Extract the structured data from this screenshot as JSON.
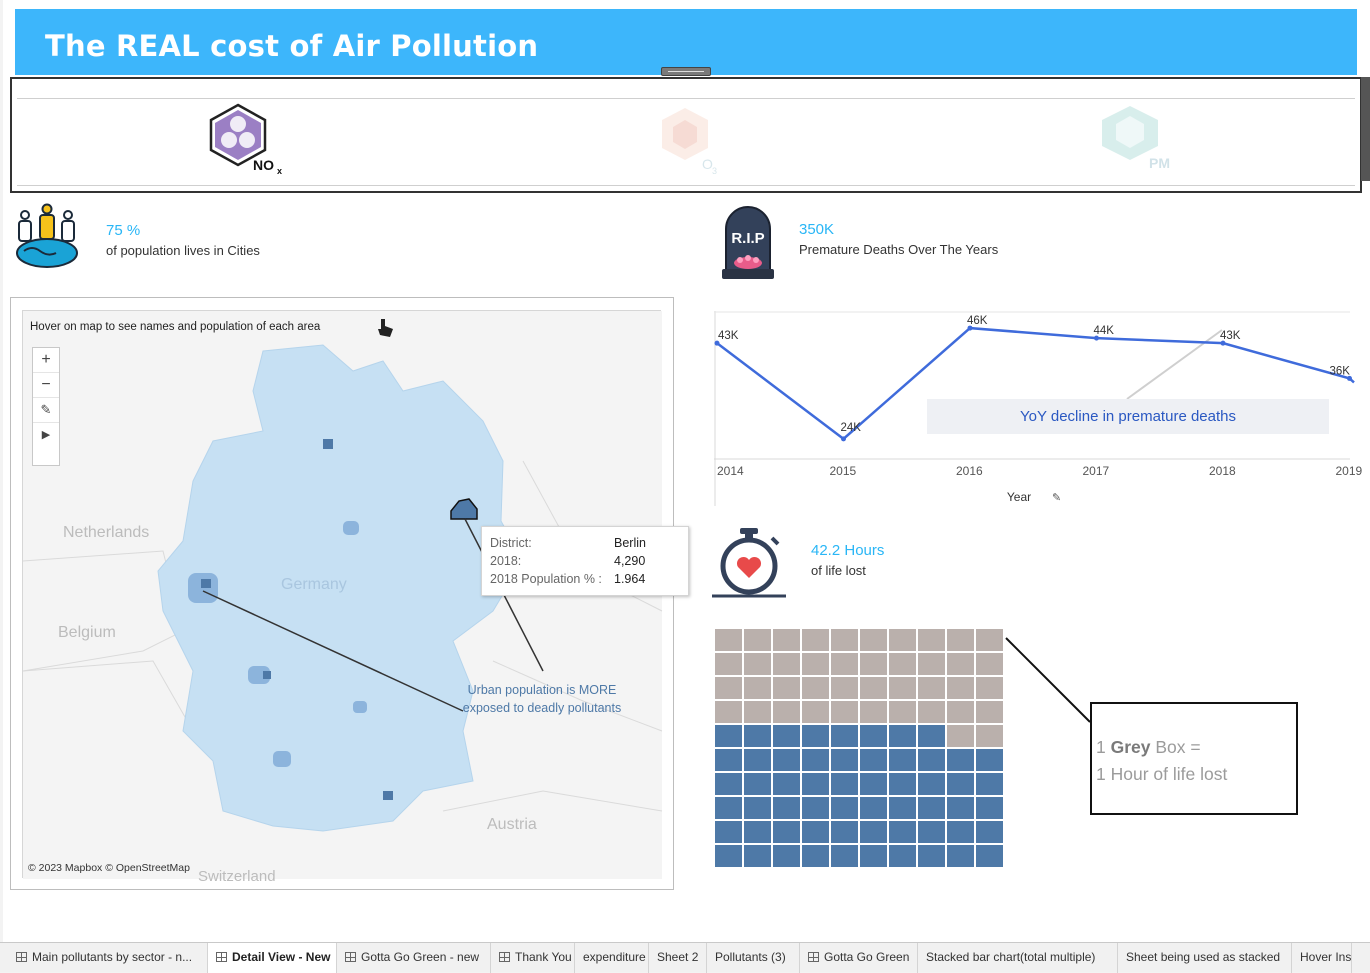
{
  "header": {
    "title": "The REAL cost of Air Pollution"
  },
  "pollutants": [
    {
      "label": "NO",
      "sub": "x",
      "color": "#9b7fc4",
      "selected": true
    },
    {
      "label": "O",
      "sub": "3",
      "color": "#f2b8a6",
      "selected": false
    },
    {
      "label": "PM",
      "sub": "",
      "color": "#9fd6d2",
      "selected": false
    }
  ],
  "kpis": {
    "urban": {
      "value": "75 %",
      "label": "of population lives in  Cities",
      "icon": "population-globe-icon"
    },
    "deaths": {
      "value": "350K",
      "label": "Premature Deaths Over The Years",
      "icon": "tombstone-icon",
      "tomb_text": "R.I.P"
    },
    "life": {
      "value": "42.2 Hours",
      "label": "of life lost",
      "icon": "stopwatch-heart-icon"
    }
  },
  "map": {
    "instruction": "Hover on map to see names and population of each area",
    "zoom_buttons": [
      "+",
      "−",
      "pin",
      "play"
    ],
    "country_labels": {
      "netherlands": "Netherlands",
      "belgium": "Belgium",
      "germany": "Germany",
      "austria": "Austria",
      "switzerland": "Switzerland"
    },
    "tooltip": [
      {
        "key": "District:",
        "value": "Berlin"
      },
      {
        "key": "2018:",
        "value": "4,290"
      },
      {
        "key": "2018 Population % :",
        "value": "1.964"
      }
    ],
    "annotation": "Urban population is MORE exposed to deadly pollutants",
    "copyright": "© 2023 Mapbox © OpenStreetMap",
    "colors": {
      "land": "#c6e0f3",
      "dense": "#4e79a7",
      "mid": "#8cb4dc"
    }
  },
  "chart_data": {
    "type": "line",
    "x": [
      "2014",
      "2015",
      "2016",
      "2017",
      "2018",
      "2019"
    ],
    "series": [
      {
        "values": [
          43,
          24,
          46,
          44,
          43,
          36
        ],
        "labels": [
          "43K",
          "24K",
          "46K",
          "44K",
          "43K",
          "36K"
        ],
        "color": "#3f6bdb"
      }
    ],
    "xlabel": "Year",
    "ylim": [
      20,
      48
    ],
    "annotation": "YoY decline in premature deaths"
  },
  "waffle": {
    "total": 100,
    "grey": 42,
    "colors": {
      "grey": "#bab0ac",
      "blue": "#4e79a7"
    },
    "legend": {
      "bold": "Grey",
      "line1_pre": "1 ",
      "line1_post": " Box =",
      "line2": "1 Hour of life lost"
    }
  },
  "tabs": [
    {
      "label": "Main pollutants by sector - n...",
      "icon": true,
      "active": false
    },
    {
      "label": "Detail View - New",
      "icon": true,
      "active": true
    },
    {
      "label": "Gotta Go Green - new",
      "icon": true,
      "active": false
    },
    {
      "label": "Thank You",
      "icon": true,
      "active": false
    },
    {
      "label": "expenditure",
      "icon": false,
      "active": false
    },
    {
      "label": "Sheet 2",
      "icon": false,
      "active": false
    },
    {
      "label": "Pollutants (3)",
      "icon": false,
      "active": false
    },
    {
      "label": "Gotta Go Green",
      "icon": true,
      "active": false
    },
    {
      "label": "Stacked bar chart(total multiple)",
      "icon": false,
      "active": false
    },
    {
      "label": "Sheet being used as stacked",
      "icon": false,
      "active": false
    },
    {
      "label": "Hover Ins",
      "icon": false,
      "active": false
    }
  ]
}
